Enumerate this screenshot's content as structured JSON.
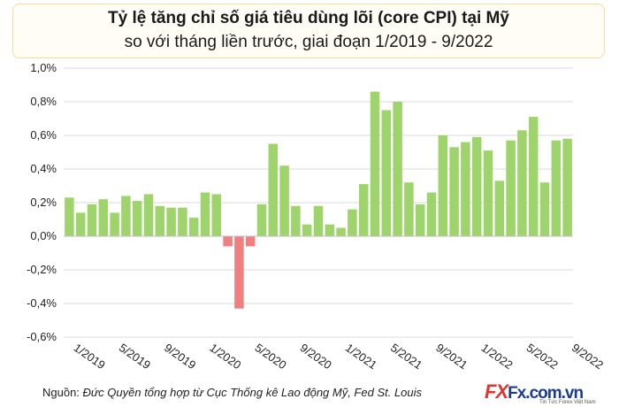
{
  "header": {
    "title_line1": "Tỷ lệ tăng chỉ số giá tiêu dùng lõi (core CPI) tại Mỹ",
    "title_line2": "so với tháng liền trước, giai đoạn 1/2019 - 9/2022"
  },
  "source": {
    "prefix": "Nguồn: ",
    "text": "Đức Quyền tổng hợp từ Cục Thống kê Lao động Mỹ, Fed St. Louis"
  },
  "logo": {
    "mark": "FX",
    "brand": "Fx.com.vn",
    "tagline": "Tin Tức Forex Việt Nam"
  },
  "chart_data": {
    "type": "bar",
    "positive_color": "#9ed46b",
    "negative_color": "#f08080",
    "ylim": [
      -0.6,
      1.0
    ],
    "yticks": [
      "-0,6%",
      "-0,4%",
      "-0,2%",
      "0,0%",
      "0,2%",
      "0,4%",
      "0,6%",
      "0,8%",
      "1,0%"
    ],
    "ytick_values": [
      -0.6,
      -0.4,
      -0.2,
      0.0,
      0.2,
      0.4,
      0.6,
      0.8,
      1.0
    ],
    "xtick_labels": [
      "1/2019",
      "5/2019",
      "9/2019",
      "1/2020",
      "5/2020",
      "9/2020",
      "1/2021",
      "5/2021",
      "9/2021",
      "1/2022",
      "5/2022",
      "9/2022"
    ],
    "xtick_indices": [
      0,
      4,
      8,
      12,
      16,
      20,
      24,
      28,
      32,
      36,
      40,
      44
    ],
    "categories": [
      "1/2019",
      "2/2019",
      "3/2019",
      "4/2019",
      "5/2019",
      "6/2019",
      "7/2019",
      "8/2019",
      "9/2019",
      "10/2019",
      "11/2019",
      "12/2019",
      "1/2020",
      "2/2020",
      "3/2020",
      "4/2020",
      "5/2020",
      "6/2020",
      "7/2020",
      "8/2020",
      "9/2020",
      "10/2020",
      "11/2020",
      "12/2020",
      "1/2021",
      "2/2021",
      "3/2021",
      "4/2021",
      "5/2021",
      "6/2021",
      "7/2021",
      "8/2021",
      "9/2021",
      "10/2021",
      "11/2021",
      "12/2021",
      "1/2022",
      "2/2022",
      "3/2022",
      "4/2022",
      "5/2022",
      "6/2022",
      "7/2022",
      "8/2022",
      "9/2022"
    ],
    "values": [
      0.23,
      0.14,
      0.19,
      0.22,
      0.14,
      0.24,
      0.21,
      0.25,
      0.18,
      0.17,
      0.17,
      0.11,
      0.26,
      0.25,
      -0.06,
      -0.43,
      -0.06,
      0.19,
      0.55,
      0.42,
      0.18,
      0.07,
      0.18,
      0.07,
      0.05,
      0.16,
      0.31,
      0.86,
      0.75,
      0.8,
      0.32,
      0.19,
      0.26,
      0.6,
      0.53,
      0.56,
      0.59,
      0.51,
      0.33,
      0.57,
      0.63,
      0.71,
      0.32,
      0.57,
      0.58
    ],
    "grid": "horizontal"
  }
}
